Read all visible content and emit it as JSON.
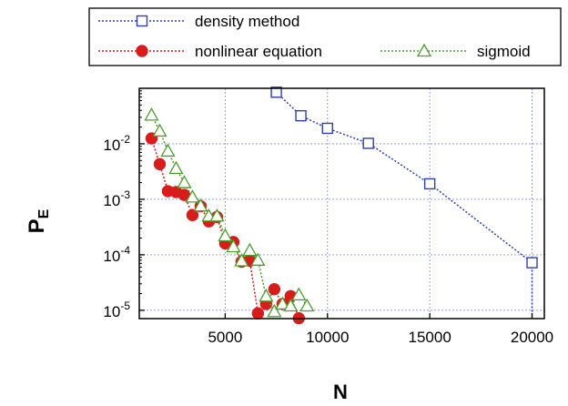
{
  "chart_data": {
    "type": "scatter",
    "xlabel": "N",
    "ylabel_main": "P",
    "ylabel_sub": "E",
    "xlim": [
      800,
      20600
    ],
    "ylim_log10": [
      -5.15,
      -1.0
    ],
    "y_scale": "log",
    "grid": true,
    "legend_position": "top",
    "x_ticks": [
      {
        "value": 5000,
        "label": "5000"
      },
      {
        "value": 10000,
        "label": "10000"
      },
      {
        "value": 15000,
        "label": "15000"
      },
      {
        "value": 20000,
        "label": "20000"
      }
    ],
    "y_ticks": [
      {
        "exp": -2,
        "base": "10",
        "sup": "-2"
      },
      {
        "exp": -3,
        "base": "10",
        "sup": "-3"
      },
      {
        "exp": -4,
        "base": "10",
        "sup": "-4"
      },
      {
        "exp": -5,
        "base": "10",
        "sup": "-5"
      }
    ],
    "series": [
      {
        "name": "density method",
        "color": "#2f3fb0",
        "marker": "open-square",
        "points": [
          [
            7500,
            0.085
          ],
          [
            8700,
            0.032
          ],
          [
            10000,
            0.019
          ],
          [
            12000,
            0.0102
          ],
          [
            15000,
            0.0019
          ],
          [
            20000,
            7.2e-05
          ]
        ],
        "tail_to": [
          20000,
          6.5e-06
        ]
      },
      {
        "name": "nonlinear equation",
        "color": "#d81c1c",
        "marker": "filled-circle",
        "points": [
          [
            1400,
            0.0125
          ],
          [
            1800,
            0.0043
          ],
          [
            2200,
            0.0014
          ],
          [
            2600,
            0.00135
          ],
          [
            3000,
            0.0012
          ],
          [
            3400,
            0.00052
          ],
          [
            3800,
            0.00075
          ],
          [
            4200,
            0.0004
          ],
          [
            4600,
            0.00048
          ],
          [
            5000,
            0.00016
          ],
          [
            5400,
            0.00017
          ],
          [
            5800,
            7.5e-05
          ],
          [
            6200,
            7.8e-05
          ],
          [
            6600,
            8.8e-06
          ],
          [
            7000,
            1.3e-05
          ],
          [
            7400,
            2.4e-05
          ],
          [
            7800,
            1.3e-05
          ],
          [
            8200,
            1.8e-05
          ],
          [
            8600,
            7.2e-06
          ]
        ]
      },
      {
        "name": "sigmoid",
        "color": "#4a9e2a",
        "marker": "open-triangle",
        "points": [
          [
            1400,
            0.033
          ],
          [
            1800,
            0.017
          ],
          [
            2200,
            0.0074
          ],
          [
            2600,
            0.0036
          ],
          [
            3000,
            0.002
          ],
          [
            3400,
            0.0011
          ],
          [
            3800,
            0.00076
          ],
          [
            4200,
            0.0005
          ],
          [
            4600,
            0.0005
          ],
          [
            5000,
            0.00022
          ],
          [
            5400,
            0.00014
          ],
          [
            5800,
            7.8e-05
          ],
          [
            6200,
            0.00012
          ],
          [
            6600,
            8e-05
          ],
          [
            7000,
            1.8e-05
          ],
          [
            7400,
            9.5e-06
          ],
          [
            7800,
            1.3e-05
          ],
          [
            8200,
            1.2e-05
          ],
          [
            8600,
            1.9e-05
          ],
          [
            9000,
            1.2e-05
          ]
        ]
      }
    ]
  }
}
